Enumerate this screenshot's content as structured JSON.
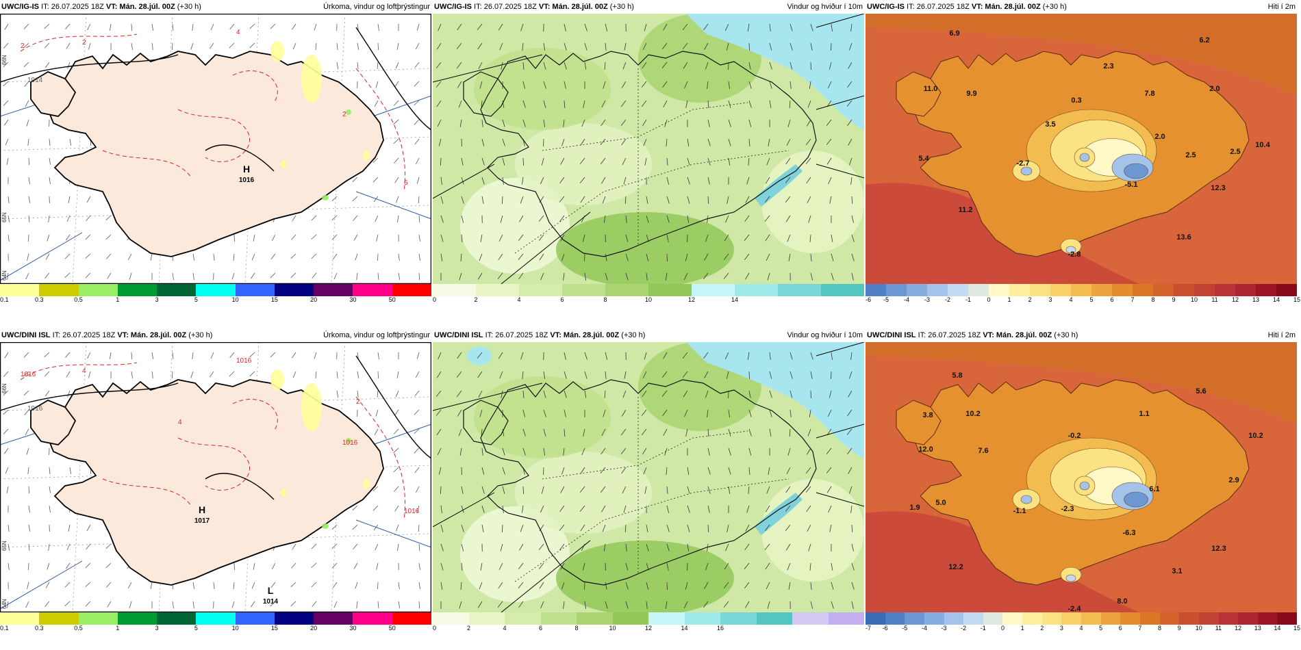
{
  "panels": [
    {
      "model": "UWC/IG-IS",
      "it": "IT: 26.07.2025 18Z",
      "vt_label": "VT:",
      "vt": "Mán. 28.júl. 00Z",
      "lead": "(+30 h)",
      "title": "Úrkoma, vindur og loftþrýstingur",
      "colorbar": {
        "colors": [
          "#ffff99",
          "#cccc00",
          "#99ee66",
          "#009933",
          "#006633",
          "#00ffee",
          "#3366ff",
          "#000080",
          "#660066",
          "#ff0088",
          "#ff0000"
        ],
        "ticks": [
          "0.1",
          "0.3",
          "0.5",
          "1",
          "3",
          "5",
          "10",
          "15",
          "20",
          "30",
          "50"
        ]
      },
      "map": {
        "kind": "precip",
        "highs": [
          {
            "sym": "H",
            "value": "1016"
          }
        ],
        "lows": [],
        "isobars": [
          "1014",
          "2",
          "4",
          "2",
          "6",
          "2"
        ],
        "lat_labels": [
          "66N",
          "65N",
          "64N"
        ]
      }
    },
    {
      "model": "UWC/IG-IS",
      "it": "IT: 26.07.2025 18Z",
      "vt_label": "VT:",
      "vt": "Mán. 28.júl. 00Z",
      "lead": "(+30 h)",
      "title": "Vindur og hviður í 10m",
      "colorbar": {
        "colors": [
          "#f7fbe5",
          "#e9f5c6",
          "#d6ecaa",
          "#bfe08c",
          "#a9d46f",
          "#93c758",
          "#c6f6f7",
          "#9ee9ea",
          "#77d7d6",
          "#55c5c1"
        ],
        "ticks": [
          "0",
          "2",
          "4",
          "6",
          "8",
          "10",
          "12",
          "14"
        ]
      },
      "map": {
        "kind": "wind"
      }
    },
    {
      "model": "UWC/IG-IS",
      "it": "IT: 26.07.2025 18Z",
      "vt_label": "VT:",
      "vt": "Mán. 28.júl. 00Z",
      "lead": "(+30 h)",
      "title": "Hiti í 2m",
      "colorbar": {
        "colors": [
          "#4f7fc4",
          "#6b97d3",
          "#86ade0",
          "#a3c3eb",
          "#c2d9f3",
          "#dfe9df",
          "#fff8c7",
          "#fdeea0",
          "#fbe283",
          "#f7d168",
          "#f2bc51",
          "#eba43f",
          "#e38d2f",
          "#db7626",
          "#d3622a",
          "#cb502f",
          "#c24233",
          "#b93236",
          "#ad2530",
          "#9e1526",
          "#8a0a1d"
        ],
        "ticks": [
          "-6",
          "-5",
          "-4",
          "-3",
          "-2",
          "-1",
          "0",
          "1",
          "2",
          "3",
          "4",
          "5",
          "6",
          "7",
          "8",
          "9",
          "10",
          "11",
          "12",
          "13",
          "14",
          "15"
        ]
      },
      "map": {
        "kind": "temp",
        "labels": [
          "6.9",
          "6.2",
          "11.0",
          "9.9",
          "2.3",
          "0.3",
          "7.8",
          "2.0",
          "3.5",
          "2.0",
          "5.4",
          "2.5",
          "-2.7",
          "2.5",
          "10.4",
          "-5.1",
          "12.3",
          "11.2",
          "13.6",
          "-2.8"
        ]
      }
    },
    {
      "model": "UWC/DINI ISL",
      "it": "IT: 26.07.2025 18Z",
      "vt_label": "VT:",
      "vt": "Mán. 28.júl. 00Z",
      "lead": "(+30 h)",
      "title": "Úrkoma, vindur og loftþrýstingur",
      "colorbar": {
        "colors": [
          "#ffff99",
          "#cccc00",
          "#99ee66",
          "#009933",
          "#006633",
          "#00ffee",
          "#3366ff",
          "#000080",
          "#660066",
          "#ff0088",
          "#ff0000"
        ],
        "ticks": [
          "0.1",
          "0.3",
          "0.5",
          "1",
          "3",
          "5",
          "10",
          "15",
          "20",
          "30",
          "50"
        ]
      },
      "map": {
        "kind": "precip",
        "highs": [
          {
            "sym": "H",
            "value": "1017"
          }
        ],
        "lows": [
          {
            "sym": "L",
            "value": "1014"
          }
        ],
        "isobars": [
          "1016",
          "1016",
          "1016",
          "1016",
          "1016",
          "4",
          "4",
          "2"
        ],
        "lat_labels": [
          "66N",
          "65N",
          "64N"
        ]
      }
    },
    {
      "model": "UWC/DINI ISL",
      "it": "IT: 26.07.2025 18Z",
      "vt_label": "VT:",
      "vt": "Mán. 28.júl. 00Z",
      "lead": "(+30 h)",
      "title": "Vindur og hviður í 10m",
      "colorbar": {
        "colors": [
          "#f7fbe5",
          "#e9f5c6",
          "#d6ecaa",
          "#bfe08c",
          "#a9d46f",
          "#93c758",
          "#c6f6f7",
          "#9ee9ea",
          "#77d7d6",
          "#55c5c1",
          "#d6c8f5",
          "#c3aef0"
        ],
        "ticks": [
          "0",
          "2",
          "4",
          "6",
          "8",
          "10",
          "12",
          "14",
          "16"
        ]
      },
      "map": {
        "kind": "wind"
      }
    },
    {
      "model": "UWC/DINI ISL",
      "it": "IT: 26.07.2025 18Z",
      "vt_label": "VT:",
      "vt": "Mán. 28.júl. 00Z",
      "lead": "(+30 h)",
      "title": "Hiti í 2m",
      "colorbar": {
        "colors": [
          "#3a6bb6",
          "#4f7fc4",
          "#6b97d3",
          "#86ade0",
          "#a3c3eb",
          "#c2d9f3",
          "#dfe9df",
          "#fff8c7",
          "#fdeea0",
          "#fbe283",
          "#f7d168",
          "#f2bc51",
          "#eba43f",
          "#e38d2f",
          "#db7626",
          "#d3622a",
          "#cb502f",
          "#c24233",
          "#b93236",
          "#ad2530",
          "#9e1526",
          "#8a0a1d"
        ],
        "ticks": [
          "-7",
          "-6",
          "-5",
          "-4",
          "-3",
          "-2",
          "-1",
          "0",
          "1",
          "2",
          "3",
          "4",
          "5",
          "6",
          "7",
          "8",
          "9",
          "10",
          "11",
          "12",
          "13",
          "14",
          "15"
        ]
      },
      "map": {
        "kind": "temp",
        "labels": [
          "5.8",
          "5.6",
          "3.8",
          "10.2",
          "1.1",
          "-0.2",
          "10.2",
          "12.0",
          "7.6",
          "6.1",
          "2.9",
          "5.0",
          "1.9",
          "-1.1",
          "-2.3",
          "-6.3",
          "12.3",
          "12.2",
          "3.1",
          "8.0",
          "-2.4"
        ]
      }
    }
  ]
}
